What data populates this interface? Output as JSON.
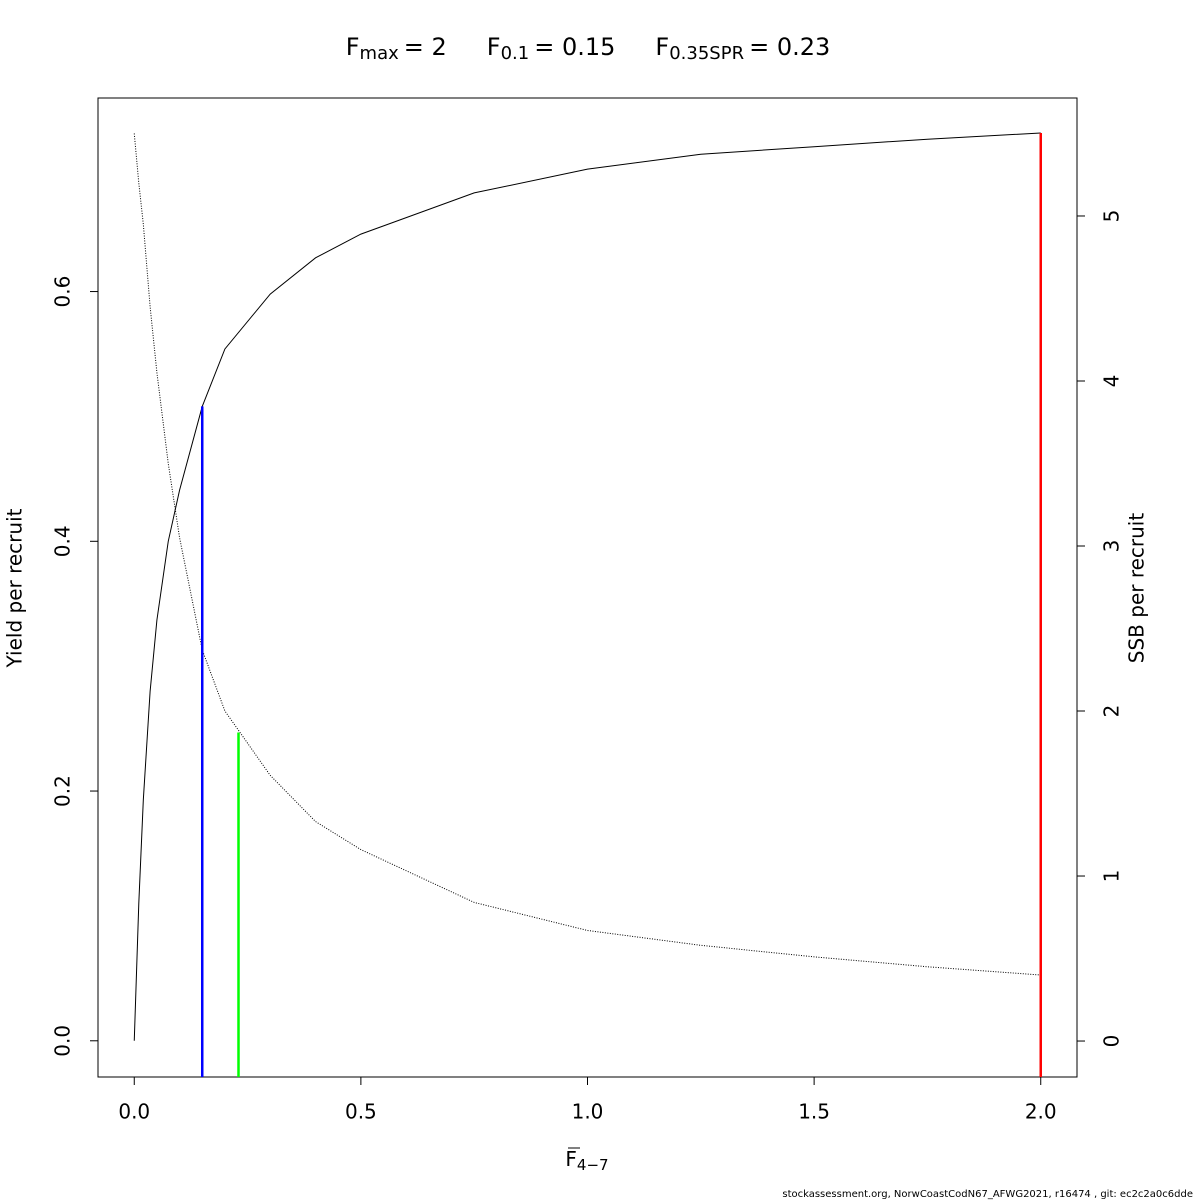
{
  "chart_data": {
    "type": "line",
    "title": [
      {
        "main": "F",
        "sub": "max",
        "value": "= 2"
      },
      {
        "main": "F",
        "sub": "0.1",
        "value": "= 0.15"
      },
      {
        "main": "F",
        "sub": "0.35SPR",
        "value": "= 0.23"
      }
    ],
    "xlabel": {
      "main": "F",
      "sub": "4−7"
    },
    "ylabel": "Yield per recruit",
    "y2label": "SSB per recruit",
    "x": [
      0,
      0.01,
      0.02,
      0.035,
      0.05,
      0.075,
      0.1,
      0.15,
      0.2,
      0.3,
      0.4,
      0.5,
      0.75,
      1,
      1.25,
      1.5,
      1.75,
      2
    ],
    "series": [
      {
        "color": "#000000",
        "values": [
          0,
          0.11,
          0.193,
          0.28,
          0.337,
          0.4,
          0.441,
          0.508,
          0.554,
          0.598,
          0.627,
          0.646,
          0.679,
          0.698,
          0.71,
          0.716,
          0.722,
          0.727
        ]
      },
      {
        "color": "#000000",
        "axis": "y2",
        "dash": "dotted",
        "values": [
          5.5,
          5.2,
          4.95,
          4.45,
          4.05,
          3.5,
          3.05,
          2.37,
          2.0,
          1.61,
          1.33,
          1.16,
          0.84,
          0.67,
          0.58,
          0.51,
          0.45,
          0.4
        ]
      }
    ],
    "reference_lines": [
      {
        "x": 0.15,
        "top": 0.508,
        "color": "#0000ff"
      },
      {
        "x": 0.23,
        "top": 1.87,
        "axis": "y2",
        "color": "#00ff00"
      },
      {
        "x": 2,
        "top": 0.727,
        "color": "#ff0000"
      }
    ],
    "xlim": [
      -0.08,
      2.08
    ],
    "ylim": [
      -0.029,
      0.755
    ],
    "y2lim": [
      -0.218,
      5.715
    ],
    "xticks": [
      {
        "value": 0,
        "label": "0.0"
      },
      {
        "value": 0.5,
        "label": "0.5"
      },
      {
        "value": 1,
        "label": "1.0"
      },
      {
        "value": 1.5,
        "label": "1.5"
      },
      {
        "value": 2,
        "label": "2.0"
      }
    ],
    "yticks": [
      {
        "value": 0,
        "label": "0.0"
      },
      {
        "value": 0.2,
        "label": "0.2"
      },
      {
        "value": 0.4,
        "label": "0.4"
      },
      {
        "value": 0.6,
        "label": "0.6"
      }
    ],
    "y2ticks": [
      0,
      1,
      2,
      3,
      4,
      5
    ],
    "footer": "stockassessment.org, NorwCoastCodN67_AFWG2021, r16474 , git: ec2c2a0c6dde"
  }
}
